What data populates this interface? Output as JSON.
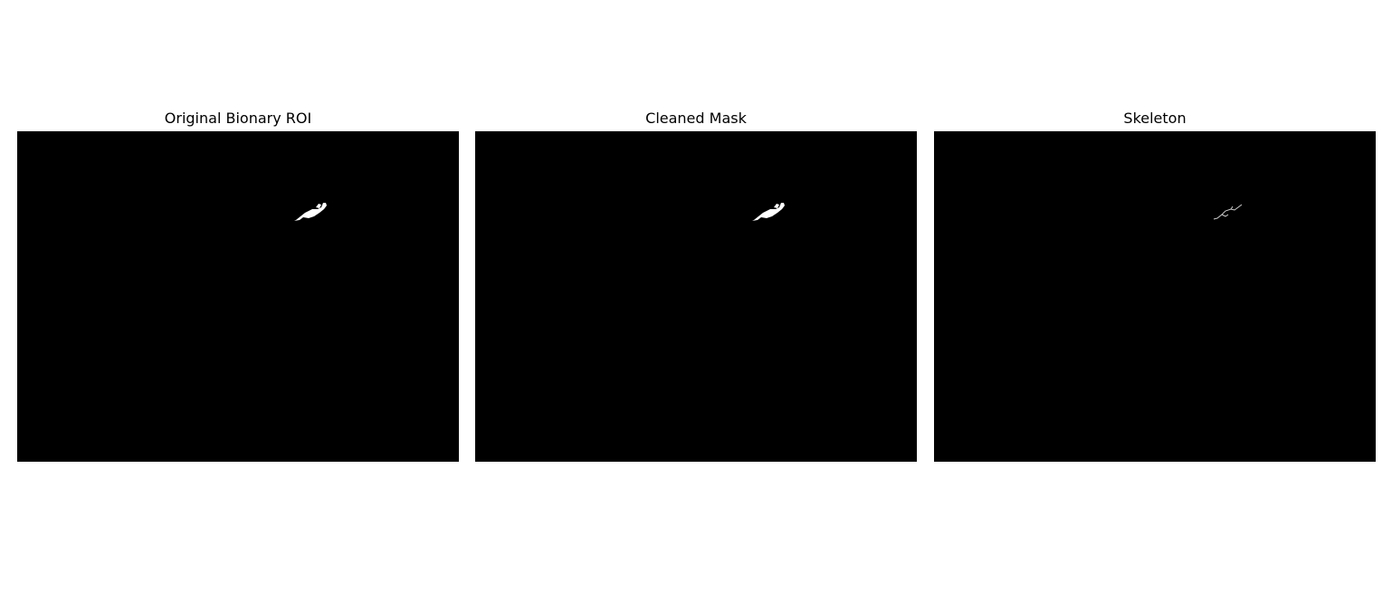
{
  "panels": [
    {
      "title": "Original Bionary ROI",
      "content": "binary-mask",
      "background_color": "#000000",
      "foreground_color": "#ffffff"
    },
    {
      "title": "Cleaned Mask",
      "content": "binary-mask",
      "background_color": "#000000",
      "foreground_color": "#ffffff"
    },
    {
      "title": "Skeleton",
      "content": "skeleton",
      "background_color": "#000000",
      "foreground_color": "#cccccc"
    }
  ]
}
